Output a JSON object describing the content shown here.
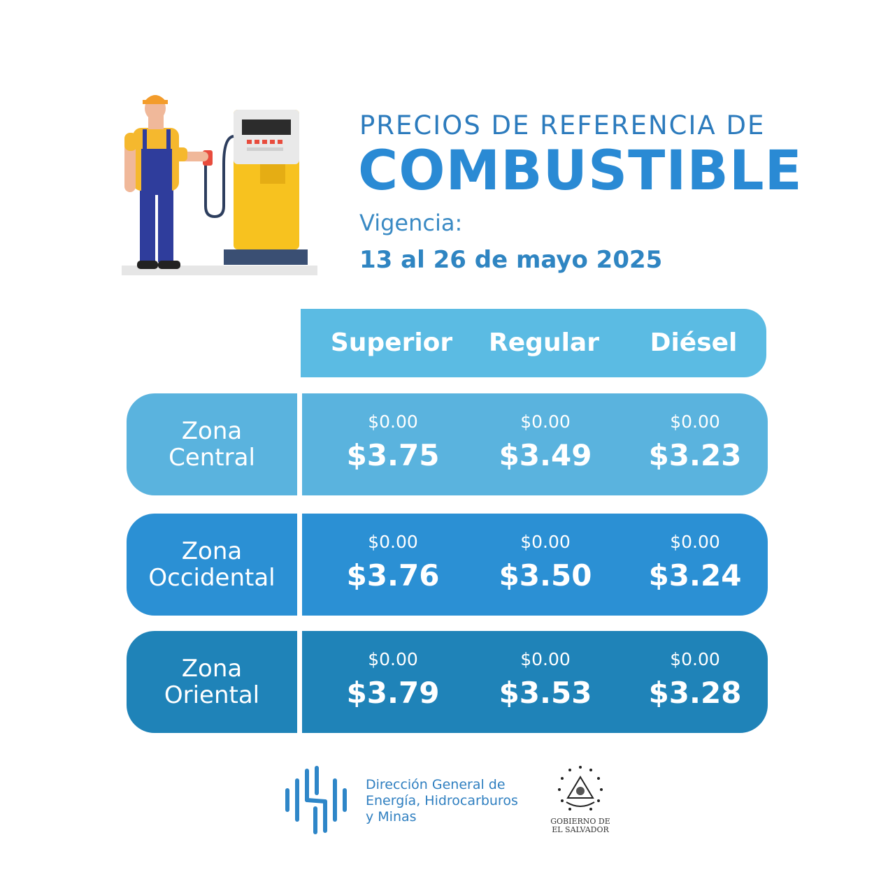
{
  "header": {
    "title_line1": "PRECIOS DE REFERENCIA DE",
    "title_line2": "COMBUSTIBLE",
    "validity_label": "Vigencia:",
    "validity_dates": "13 al 26 de mayo 2025"
  },
  "table": {
    "columns": [
      "Superior",
      "Regular",
      "Diésel"
    ],
    "zones": [
      {
        "name_line1": "Zona",
        "name_line2": "Central",
        "label_color": "#5ab3de",
        "row_color": "#5ab3de",
        "cells": [
          {
            "delta": "$0.00",
            "price": "$3.75"
          },
          {
            "delta": "$0.00",
            "price": "$3.49"
          },
          {
            "delta": "$0.00",
            "price": "$3.23"
          }
        ]
      },
      {
        "name_line1": "Zona",
        "name_line2": "Occidental",
        "label_color": "#2b90d4",
        "row_color": "#2b90d4",
        "cells": [
          {
            "delta": "$0.00",
            "price": "$3.76"
          },
          {
            "delta": "$0.00",
            "price": "$3.50"
          },
          {
            "delta": "$0.00",
            "price": "$3.24"
          }
        ]
      },
      {
        "name_line1": "Zona",
        "name_line2": "Oriental",
        "label_color": "#1f83b8",
        "row_color": "#1f83b8",
        "cells": [
          {
            "delta": "$0.00",
            "price": "$3.79"
          },
          {
            "delta": "$0.00",
            "price": "$3.53"
          },
          {
            "delta": "$0.00",
            "price": "$3.28"
          }
        ]
      }
    ]
  },
  "footer": {
    "org_line1": "Dirección General de",
    "org_line2": "Energía, Hidrocarburos",
    "org_line3": "y Minas",
    "gov_line1": "GOBIERNO DE",
    "gov_line2": "EL SALVADOR"
  },
  "icons": {
    "hero": "fuel-attendant-icon",
    "org_logo": "dgehm-logo-icon",
    "seal": "el-salvador-seal-icon"
  }
}
